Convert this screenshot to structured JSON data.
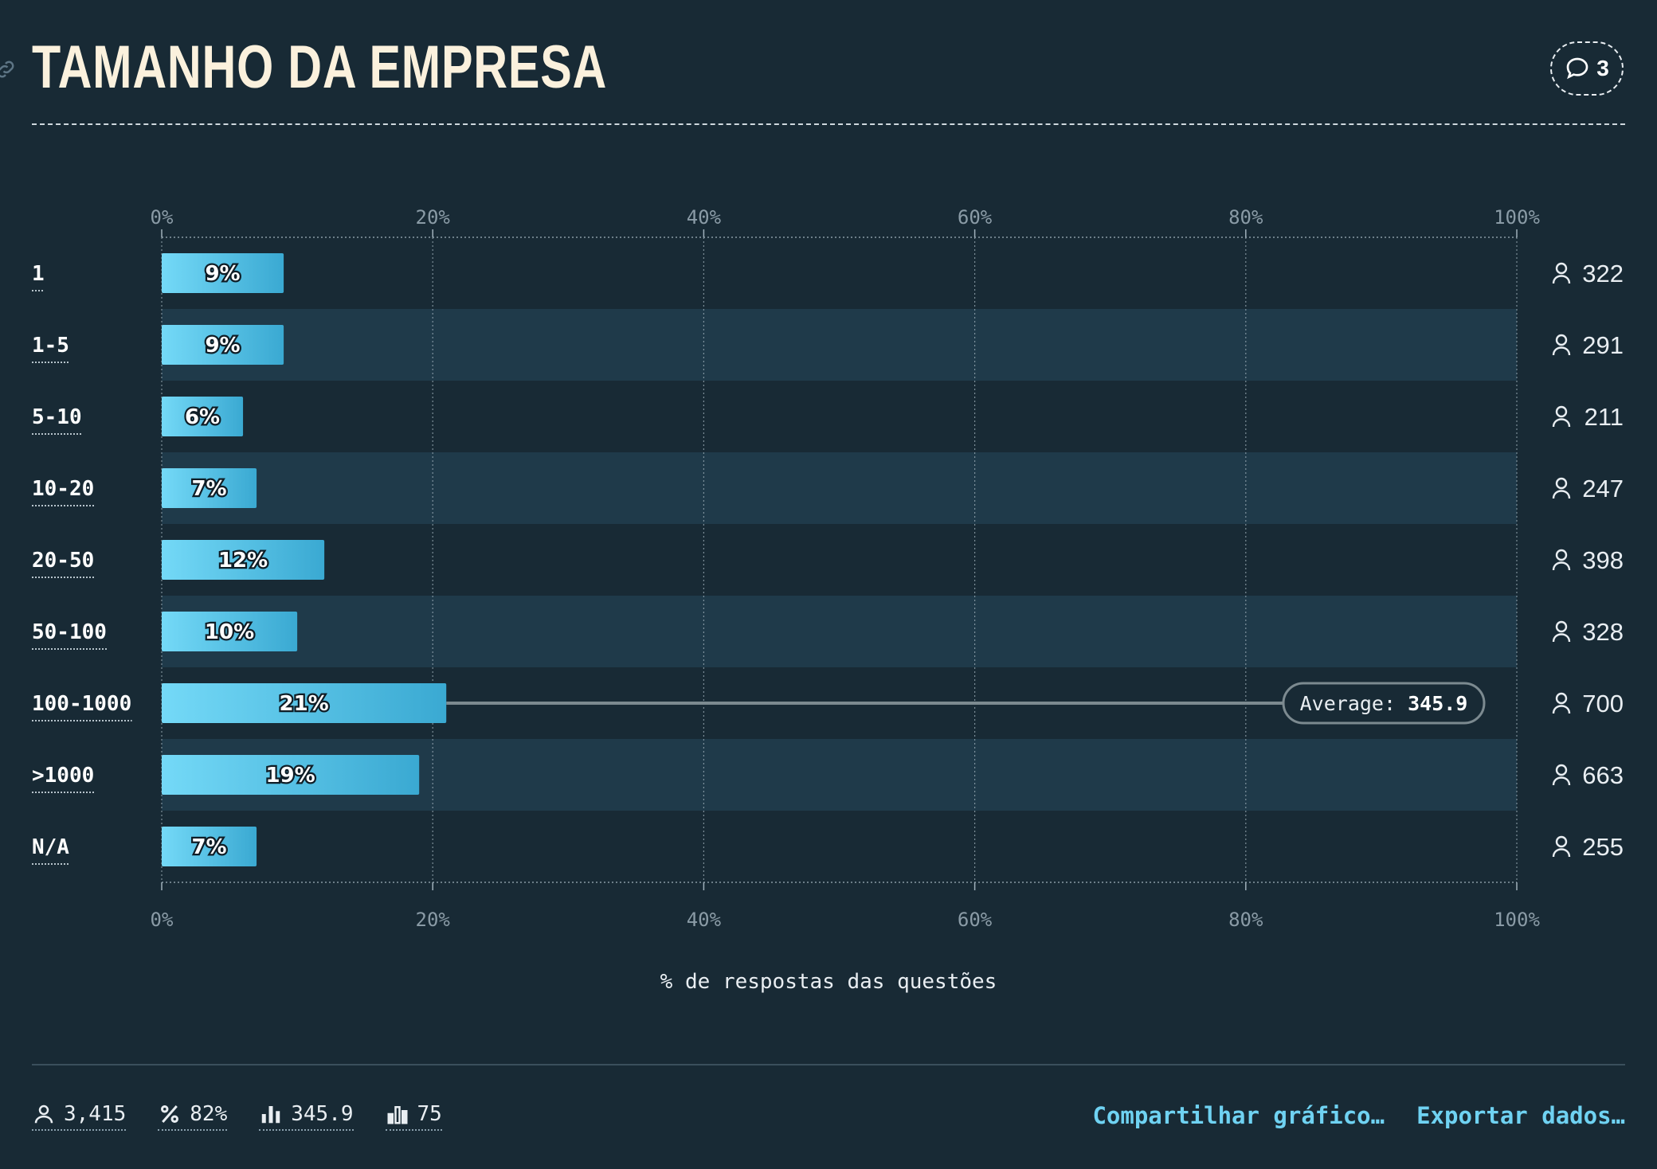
{
  "header": {
    "title": "TAMANHO DA EMPRESA",
    "comment_count": "3"
  },
  "colors": {
    "background": "#182a35",
    "band": "#1f3a4a",
    "bar_start": "#74d9f7",
    "bar_end": "#3aa9d2",
    "accent_link": "#6fd2f2"
  },
  "chart_data": {
    "type": "bar",
    "orientation": "horizontal",
    "categories": [
      "1",
      "1-5",
      "5-10",
      "10-20",
      "20-50",
      "50-100",
      "100-1000",
      ">1000",
      "N/A"
    ],
    "values": [
      9,
      9,
      6,
      7,
      12,
      10,
      21,
      19,
      7
    ],
    "value_labels": [
      "9%",
      "9%",
      "6%",
      "7%",
      "12%",
      "10%",
      "21%",
      "19%",
      "7%"
    ],
    "counts": [
      "322",
      "291",
      "211",
      "247",
      "398",
      "328",
      "700",
      "663",
      "255"
    ],
    "xlim": [
      0,
      100
    ],
    "x_ticks": [
      "0%",
      "20%",
      "40%",
      "60%",
      "80%",
      "100%"
    ],
    "xlabel": "% de respostas das questões",
    "grid": true,
    "average": {
      "label": "Average:",
      "value": "345.9",
      "row": "100-1000"
    }
  },
  "footer": {
    "stats": [
      {
        "icon": "person-icon",
        "value": "3,415"
      },
      {
        "icon": "percent-icon",
        "value": "82%"
      },
      {
        "icon": "bar-chart-icon",
        "value": "345.9"
      },
      {
        "icon": "bar-chart-outline-icon",
        "value": "75"
      }
    ],
    "share_label": "Compartilhar gráfico…",
    "export_label": "Exportar dados…"
  }
}
